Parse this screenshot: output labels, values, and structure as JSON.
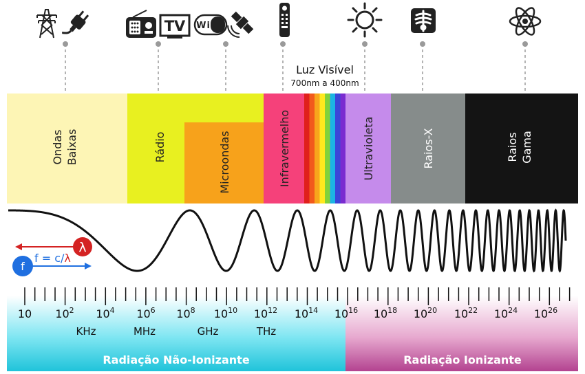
{
  "visible_light": {
    "title": "Luz Visível",
    "range": "700nm a 400nm"
  },
  "bands": [
    {
      "id": "ondas-baixas",
      "lines": [
        "Ondas",
        "Baixas"
      ],
      "color": "#FDF5B5"
    },
    {
      "id": "radio",
      "lines": [
        "Rádio"
      ],
      "color": "#E8F020"
    },
    {
      "id": "microondas",
      "lines": [
        "Microondas"
      ],
      "color": "#F7A21B"
    },
    {
      "id": "infravermelho",
      "lines": [
        "Infravermelho"
      ],
      "color": "#F5417A"
    },
    {
      "id": "ultravioleta",
      "lines": [
        "Ultravioleta"
      ],
      "color": "#C58BEB"
    },
    {
      "id": "raios-x",
      "lines": [
        "Raios-X"
      ],
      "color": "#868C8B"
    },
    {
      "id": "raios-gama",
      "lines": [
        "Raios",
        "Gama"
      ],
      "color": "#141414"
    }
  ],
  "spectrum_colors": [
    "#E0201C",
    "#F25A1C",
    "#F8A61C",
    "#FFE91E",
    "#82D23A",
    "#1CB4E4",
    "#3C45D8",
    "#7A2BD0"
  ],
  "formula": {
    "f": "f",
    "lambda": "λ",
    "text": "f = c/",
    "f_color": "#1F6FE0",
    "lambda_color": "#D42323"
  },
  "frequency_ticks": [
    {
      "base": "10",
      "exp": ""
    },
    {
      "base": "10",
      "exp": "2"
    },
    {
      "base": "10",
      "exp": "4"
    },
    {
      "base": "10",
      "exp": "6"
    },
    {
      "base": "10",
      "exp": "8"
    },
    {
      "base": "10",
      "exp": "10"
    },
    {
      "base": "10",
      "exp": "12"
    },
    {
      "base": "10",
      "exp": "14"
    },
    {
      "base": "10",
      "exp": "16"
    },
    {
      "base": "10",
      "exp": "18"
    },
    {
      "base": "10",
      "exp": "20"
    },
    {
      "base": "10",
      "exp": "22"
    },
    {
      "base": "10",
      "exp": "24"
    },
    {
      "base": "10",
      "exp": "26"
    }
  ],
  "units": [
    "KHz",
    "MHz",
    "GHz",
    "THz"
  ],
  "footer": {
    "non_ionizing": "Radiação Não-Ionizante",
    "ionizing": "Radiação Ionizante",
    "non_ionizing_color": "#3CC5D8",
    "ionizing_color": "#B64D93"
  },
  "icons": {
    "tv": "TV",
    "wifi": "Wi Fi",
    "transmission_tower": "transmission-tower-icon",
    "plug": "plug-icon",
    "radio": "radio-icon",
    "satellite": "satellite-icon",
    "remote": "remote-control-icon",
    "sun": "sun-icon",
    "xray": "xray-icon",
    "atom": "atom-icon"
  }
}
